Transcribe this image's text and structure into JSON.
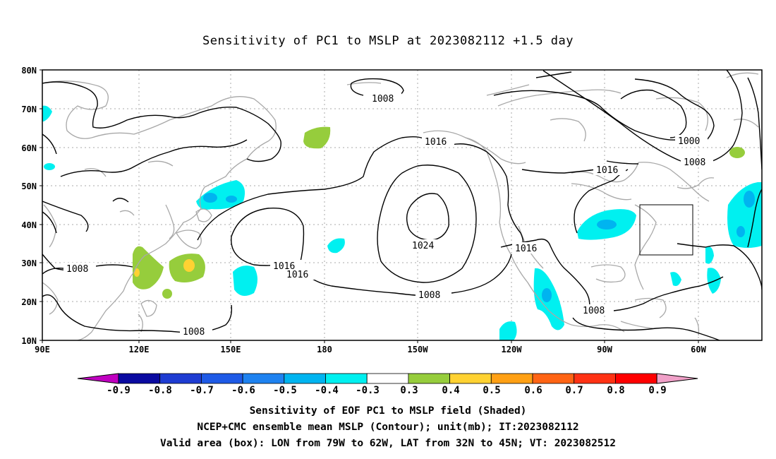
{
  "title": "Sensitivity of PC1 to MSLP at 2023082112 +1.5 day",
  "axes": {
    "lat_labels": [
      "80N",
      "70N",
      "60N",
      "50N",
      "40N",
      "30N",
      "20N",
      "10N"
    ],
    "lon_labels": [
      "90E",
      "120E",
      "150E",
      "180",
      "150W",
      "120W",
      "90W",
      "60W"
    ]
  },
  "contour_labels": [
    "1008",
    "1016",
    "1000",
    "1008",
    "1016",
    "1024",
    "1016",
    "1016",
    "1008",
    "1016",
    "1008",
    "1008",
    "1008"
  ],
  "colorbar": {
    "labels": [
      "-0.9",
      "-0.8",
      "-0.7",
      "-0.6",
      "-0.5",
      "-0.4",
      "-0.3",
      "0.3",
      "0.4",
      "0.5",
      "0.6",
      "0.7",
      "0.8",
      "0.9"
    ],
    "colors": [
      "#c000c0",
      "#0a0aa0",
      "#1e3cd2",
      "#1e5ae6",
      "#1e82f0",
      "#00b4f0",
      "#00f0f0",
      "#ffffff",
      "#96cd3c",
      "#ffd232",
      "#ffa014",
      "#ff6414",
      "#ff3214",
      "#ff0000",
      "#f0a0c8"
    ]
  },
  "captions": {
    "line1": "Sensitivity of EOF PC1 to MSLP field (Shaded)",
    "line2": "NCEP+CMC ensemble mean MSLP (Contour); unit(mb); IT:2023082112",
    "line3": "Valid area (box): LON from 79W to 62W, LAT from 32N to 45N; VT: 2023082512"
  }
}
